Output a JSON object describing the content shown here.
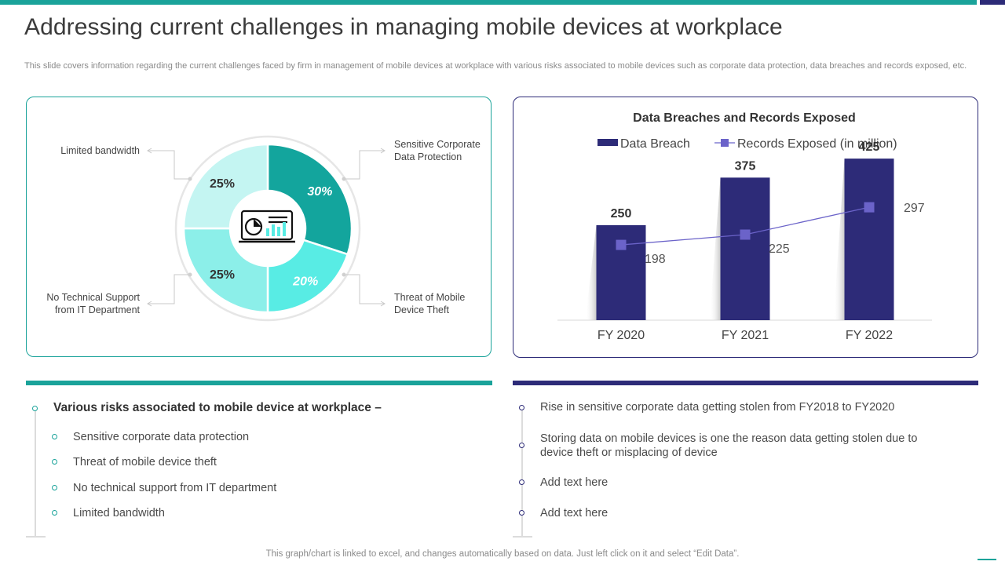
{
  "header": {
    "title": "Addressing current challenges in managing mobile devices at workplace",
    "subtitle": "This slide covers information regarding the current challenges faced by firm in management of mobile devices at workplace with various risks associated to mobile devices such as corporate data protection, data breaches and records exposed, etc."
  },
  "colors": {
    "teal": "#1aa39a",
    "navy": "#2d2b78",
    "pie_dark_teal": "#13a59d",
    "pie_aqua": "#58ece4",
    "pie_light_aqua": "#8cefe9",
    "pie_pale_aqua": "#c4f5f2",
    "line_marker": "#6b63c9"
  },
  "donut": {
    "icon": "presentation-chart-icon",
    "segments": [
      {
        "label": "Sensitive Corporate Data Protection",
        "label_lines": [
          "Sensitive Corporate",
          "Data Protection"
        ],
        "value": 30,
        "display": "30%"
      },
      {
        "label": "Threat of Mobile Device Theft",
        "label_lines": [
          "Threat of Mobile",
          "Device Theft"
        ],
        "value": 20,
        "display": "20%"
      },
      {
        "label": "No Technical Support from IT Department",
        "label_lines": [
          "No Technical Support",
          "from IT Department"
        ],
        "value": 25,
        "display": "25%"
      },
      {
        "label": "Limited bandwidth",
        "label_lines": [
          "Limited bandwidth"
        ],
        "value": 25,
        "display": "25%"
      }
    ]
  },
  "chart_data": {
    "type": "bar",
    "title": "Data Breaches and Records Exposed",
    "categories": [
      "FY 2020",
      "FY 2021",
      "FY 2022"
    ],
    "series": [
      {
        "name": "Data Breach",
        "kind": "bar",
        "values": [
          250,
          375,
          425
        ]
      },
      {
        "name": "Records Exposed (in million)",
        "kind": "line",
        "values": [
          198,
          225,
          297
        ]
      }
    ],
    "legend": "top",
    "ylim": [
      0,
      450
    ],
    "grid": false
  },
  "risks": {
    "heading": "Various risks associated to mobile device at workplace –",
    "items": [
      "Sensitive corporate data protection",
      "Threat of mobile device theft",
      "No technical support from IT department",
      "Limited bandwidth"
    ]
  },
  "notes": {
    "items": [
      "Rise in sensitive corporate data getting stolen from  FY2018 to FY2020",
      "Storing data on mobile devices is one the reason data getting stolen due to device theft or misplacing of device",
      "Add text here",
      "Add text here"
    ]
  },
  "footer": {
    "text": "This graph/chart is linked to excel,  and changes automatically based on data. Just left click on it and select “Edit Data”."
  }
}
